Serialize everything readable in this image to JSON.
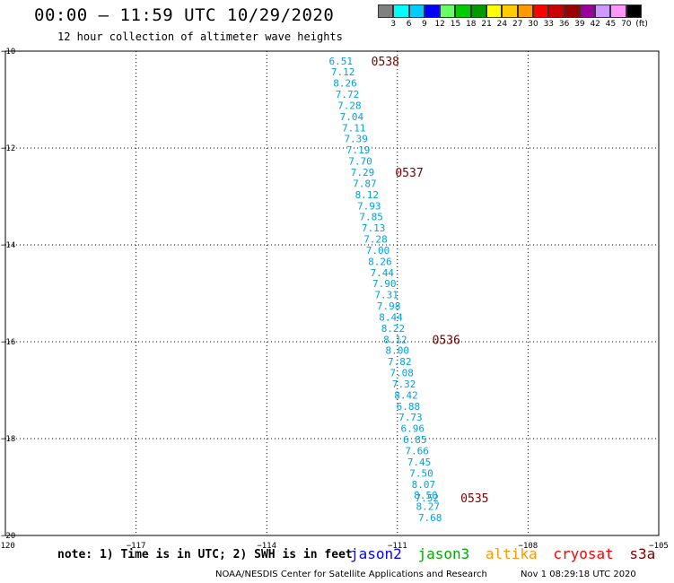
{
  "header": {
    "title": "00:00 — 11:59 UTC 10/29/2020",
    "subtitle": "12 hour collection of altimeter wave heights"
  },
  "legend": {
    "colors": [
      "#808080",
      "#00ffff",
      "#00ccff",
      "#0000ff",
      "#66ff66",
      "#00cc00",
      "#009900",
      "#ffff00",
      "#ffcc00",
      "#ff9900",
      "#ff0000",
      "#cc0000",
      "#990000",
      "#990099",
      "#cc99ff",
      "#ff99ff",
      "#000000"
    ],
    "labels": [
      "3",
      "6",
      "9",
      "12",
      "15",
      "18",
      "21",
      "24",
      "27",
      "30",
      "33",
      "36",
      "39",
      "42",
      "45",
      "70",
      "(ft)"
    ]
  },
  "chart_data": {
    "type": "scatter",
    "xlim": [
      -120,
      -105
    ],
    "ylim": [
      -20,
      -10
    ],
    "xticks": [
      -120,
      -117,
      -114,
      -111,
      -108,
      -105
    ],
    "xtick_labels": [
      "−120",
      "−117",
      "−114",
      "−111",
      "−108",
      "−105"
    ],
    "yticks": [
      -10,
      -12,
      -14,
      -16,
      -18,
      -20
    ],
    "ytick_labels": [
      "−10",
      "−12",
      "−14",
      "−16",
      "−18",
      "−20"
    ],
    "grid": true,
    "color": "#00a0e0",
    "points": [
      {
        "lon": -112.3,
        "lat": -10.2,
        "v": "6.51"
      },
      {
        "lon": -112.25,
        "lat": -10.43,
        "v": "7.12"
      },
      {
        "lon": -112.2,
        "lat": -10.66,
        "v": "8.26"
      },
      {
        "lon": -112.15,
        "lat": -10.89,
        "v": "7.72"
      },
      {
        "lon": -112.1,
        "lat": -11.12,
        "v": "7.28"
      },
      {
        "lon": -112.05,
        "lat": -11.35,
        "v": "7.04"
      },
      {
        "lon": -112.0,
        "lat": -11.58,
        "v": "7.11"
      },
      {
        "lon": -111.95,
        "lat": -11.81,
        "v": "7.39"
      },
      {
        "lon": -111.9,
        "lat": -12.04,
        "v": "7.19"
      },
      {
        "lon": -111.85,
        "lat": -12.27,
        "v": "7.70"
      },
      {
        "lon": -111.8,
        "lat": -12.5,
        "v": "7.29"
      },
      {
        "lon": -111.75,
        "lat": -12.73,
        "v": "7.87"
      },
      {
        "lon": -111.7,
        "lat": -12.96,
        "v": "8.12"
      },
      {
        "lon": -111.65,
        "lat": -13.19,
        "v": "7.93"
      },
      {
        "lon": -111.6,
        "lat": -13.42,
        "v": "7.85"
      },
      {
        "lon": -111.55,
        "lat": -13.65,
        "v": "7.13"
      },
      {
        "lon": -111.5,
        "lat": -13.88,
        "v": "7.28"
      },
      {
        "lon": -111.45,
        "lat": -14.11,
        "v": "7.00"
      },
      {
        "lon": -111.4,
        "lat": -14.34,
        "v": "8.26"
      },
      {
        "lon": -111.35,
        "lat": -14.57,
        "v": "7.44"
      },
      {
        "lon": -111.3,
        "lat": -14.8,
        "v": "7.90"
      },
      {
        "lon": -111.25,
        "lat": -15.03,
        "v": "7.31"
      },
      {
        "lon": -111.2,
        "lat": -15.26,
        "v": "7.98"
      },
      {
        "lon": -111.15,
        "lat": -15.49,
        "v": "8.44"
      },
      {
        "lon": -111.1,
        "lat": -15.72,
        "v": "8.22"
      },
      {
        "lon": -111.05,
        "lat": -15.95,
        "v": "8.12"
      },
      {
        "lon": -111.0,
        "lat": -16.18,
        "v": "8.00"
      },
      {
        "lon": -110.95,
        "lat": -16.41,
        "v": "7.82"
      },
      {
        "lon": -110.9,
        "lat": -16.64,
        "v": "7.08"
      },
      {
        "lon": -110.85,
        "lat": -16.87,
        "v": "7.32"
      },
      {
        "lon": -110.8,
        "lat": -17.1,
        "v": "8.42"
      },
      {
        "lon": -110.75,
        "lat": -17.33,
        "v": "6.88"
      },
      {
        "lon": -110.7,
        "lat": -17.56,
        "v": "7.73"
      },
      {
        "lon": -110.65,
        "lat": -17.79,
        "v": "6.96"
      },
      {
        "lon": -110.6,
        "lat": -18.02,
        "v": "6.85"
      },
      {
        "lon": -110.55,
        "lat": -18.25,
        "v": "7.66"
      },
      {
        "lon": -110.5,
        "lat": -18.48,
        "v": "7.45"
      },
      {
        "lon": -110.45,
        "lat": -18.71,
        "v": "7.50"
      },
      {
        "lon": -110.4,
        "lat": -18.94,
        "v": "8.07"
      },
      {
        "lon": -110.35,
        "lat": -19.17,
        "v": "8.50"
      },
      {
        "lon": -110.32,
        "lat": -19.22,
        "v": "7.52"
      },
      {
        "lon": -110.3,
        "lat": -19.4,
        "v": "8.27"
      },
      {
        "lon": -110.25,
        "lat": -19.63,
        "v": "7.68"
      }
    ],
    "time_labels": [
      {
        "lon": -111.6,
        "lat": -10.2,
        "t": "0538"
      },
      {
        "lon": -111.05,
        "lat": -12.5,
        "t": "0537"
      },
      {
        "lon": -110.2,
        "lat": -15.95,
        "t": "0536"
      },
      {
        "lon": -109.55,
        "lat": -19.22,
        "t": "0535"
      }
    ],
    "time_label_color": "#7a0000"
  },
  "footer": {
    "note": "note: 1) Time is in UTC; 2) SWH is in feet",
    "satellites": [
      {
        "name": "jason2",
        "color": "#0000ff"
      },
      {
        "name": "jason3",
        "color": "#00aa00"
      },
      {
        "name": "altika",
        "color": "#ff9900"
      },
      {
        "name": "cryosat",
        "color": "#ff0000"
      },
      {
        "name": "s3a",
        "color": "#7a0000"
      }
    ],
    "credit": "NOAA/NESDIS Center for Satellite Applications and Research",
    "timestamp": "Nov  1 08:29:18 UTC 2020"
  }
}
